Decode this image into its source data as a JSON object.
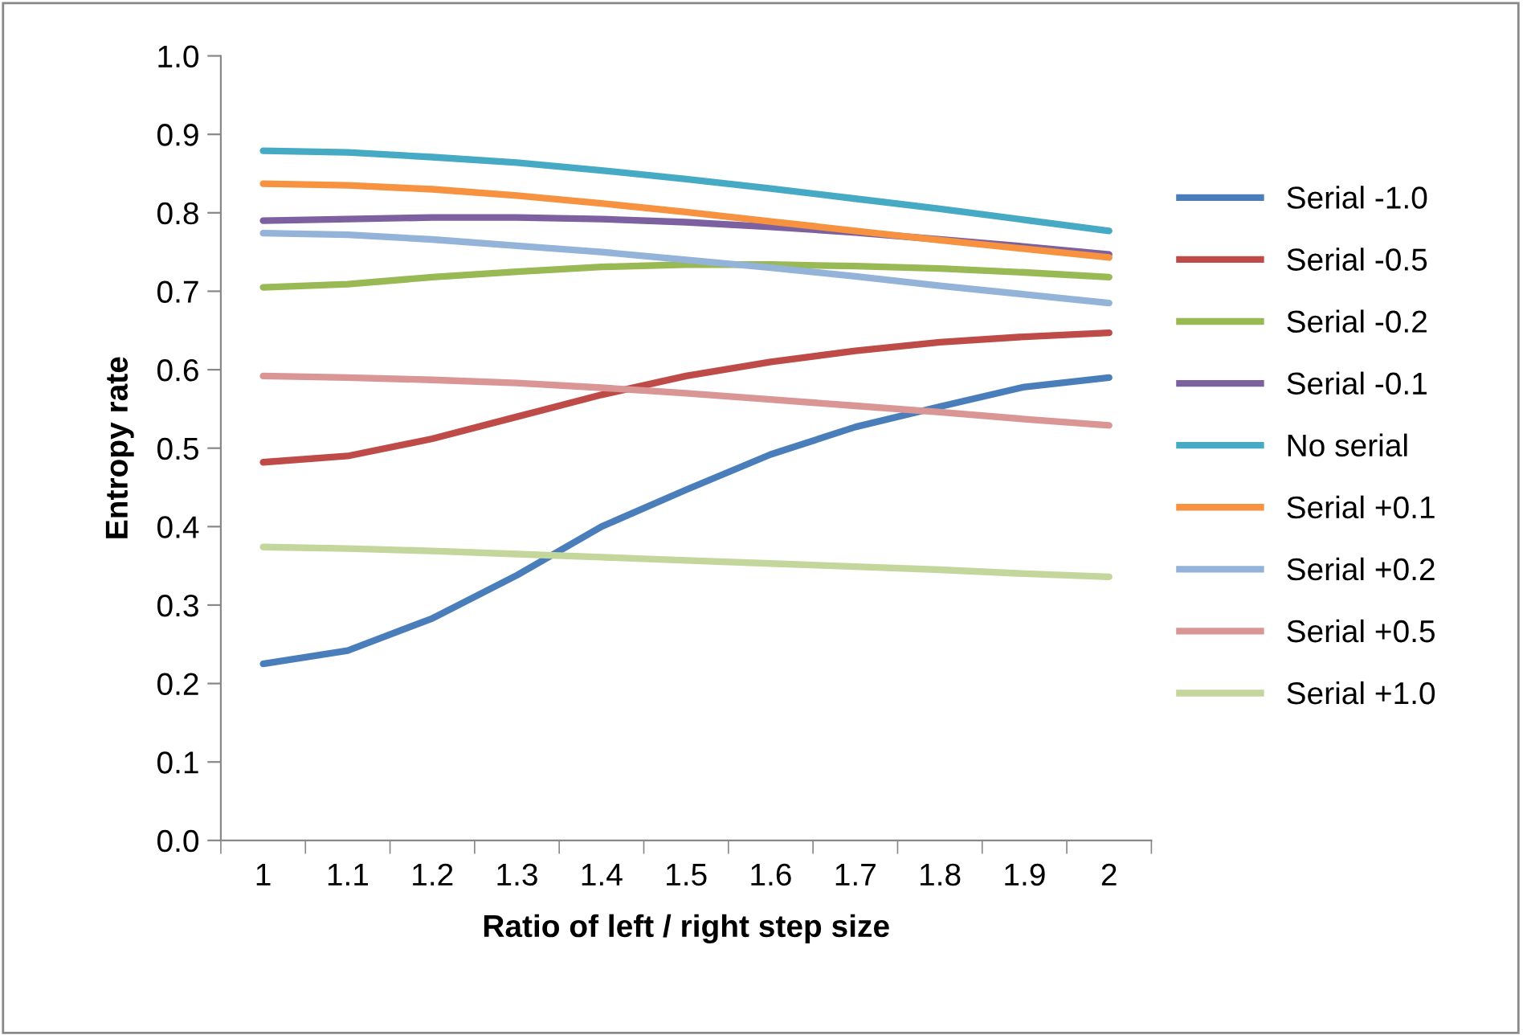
{
  "chart_data": {
    "type": "line",
    "xlabel": "Ratio of left / right step size",
    "ylabel": "Entropy rate",
    "categories": [
      "1",
      "1.1",
      "1.2",
      "1.3",
      "1.4",
      "1.5",
      "1.6",
      "1.7",
      "1.8",
      "1.9",
      "2"
    ],
    "ylim": [
      0,
      1
    ],
    "yticks": [
      {
        "value": 0,
        "label": "0.0"
      },
      {
        "value": 0.1,
        "label": "0.1"
      },
      {
        "value": 0.2,
        "label": "0.2"
      },
      {
        "value": 0.3,
        "label": "0.3"
      },
      {
        "value": 0.4,
        "label": "0.4"
      },
      {
        "value": 0.5,
        "label": "0.5"
      },
      {
        "value": 0.6,
        "label": "0.6"
      },
      {
        "value": 0.7,
        "label": "0.7"
      },
      {
        "value": 0.8,
        "label": "0.8"
      },
      {
        "value": 0.9,
        "label": "0.9"
      },
      {
        "value": 1,
        "label": "1.0"
      }
    ],
    "grid": false,
    "legend": "right",
    "marker": "none",
    "line_style": "solid",
    "series": [
      {
        "name": "Serial -1.0",
        "color": "#4a7ebb",
        "values": [
          0.225,
          0.242,
          0.283,
          0.338,
          0.4,
          0.447,
          0.492,
          0.527,
          0.553,
          0.578,
          0.59
        ]
      },
      {
        "name": "Serial -0.5",
        "color": "#be4b48",
        "values": [
          0.482,
          0.49,
          0.512,
          0.54,
          0.568,
          0.592,
          0.61,
          0.624,
          0.635,
          0.642,
          0.647
        ]
      },
      {
        "name": "Serial -0.2",
        "color": "#98b954",
        "values": [
          0.705,
          0.709,
          0.718,
          0.725,
          0.731,
          0.734,
          0.734,
          0.732,
          0.729,
          0.724,
          0.718
        ]
      },
      {
        "name": "Serial -0.1",
        "color": "#7d60a0",
        "values": [
          0.79,
          0.792,
          0.794,
          0.794,
          0.792,
          0.788,
          0.782,
          0.775,
          0.766,
          0.757,
          0.747
        ]
      },
      {
        "name": "No serial",
        "color": "#46aac5",
        "values": [
          0.879,
          0.877,
          0.871,
          0.864,
          0.854,
          0.843,
          0.831,
          0.818,
          0.805,
          0.791,
          0.777
        ]
      },
      {
        "name": "Serial +0.1",
        "color": "#f69240",
        "values": [
          0.837,
          0.835,
          0.83,
          0.822,
          0.812,
          0.801,
          0.789,
          0.777,
          0.765,
          0.754,
          0.743
        ]
      },
      {
        "name": "Serial +0.2",
        "color": "#94b3d9",
        "values": [
          0.774,
          0.772,
          0.766,
          0.758,
          0.75,
          0.74,
          0.73,
          0.719,
          0.707,
          0.696,
          0.685
        ]
      },
      {
        "name": "Serial +0.5",
        "color": "#d99694",
        "values": [
          0.592,
          0.59,
          0.587,
          0.583,
          0.577,
          0.57,
          0.562,
          0.554,
          0.546,
          0.537,
          0.529
        ]
      },
      {
        "name": "Serial +1.0",
        "color": "#c3d69b",
        "values": [
          0.374,
          0.372,
          0.369,
          0.365,
          0.361,
          0.357,
          0.353,
          0.349,
          0.345,
          0.34,
          0.336
        ]
      }
    ]
  }
}
